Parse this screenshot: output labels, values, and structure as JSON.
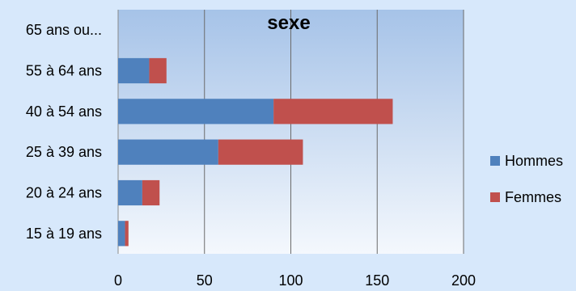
{
  "chart_data": {
    "type": "bar",
    "orientation": "horizontal",
    "stacked": true,
    "title": "sexe",
    "categories": [
      "65 ans ou...",
      "55 à 64 ans",
      "40 à 54 ans",
      "25 à 39 ans",
      "20 à 24 ans",
      "15 à 19 ans"
    ],
    "series": [
      {
        "name": "Hommes",
        "color": "#4f81bd",
        "values": [
          0,
          18,
          90,
          58,
          14,
          4
        ]
      },
      {
        "name": "Femmes",
        "color": "#c0504d",
        "values": [
          0,
          10,
          69,
          49,
          10,
          2
        ]
      }
    ],
    "xlim": [
      0,
      200
    ],
    "xticks": [
      0,
      50,
      100,
      150,
      200
    ],
    "grid": true,
    "legend_position": "right"
  }
}
